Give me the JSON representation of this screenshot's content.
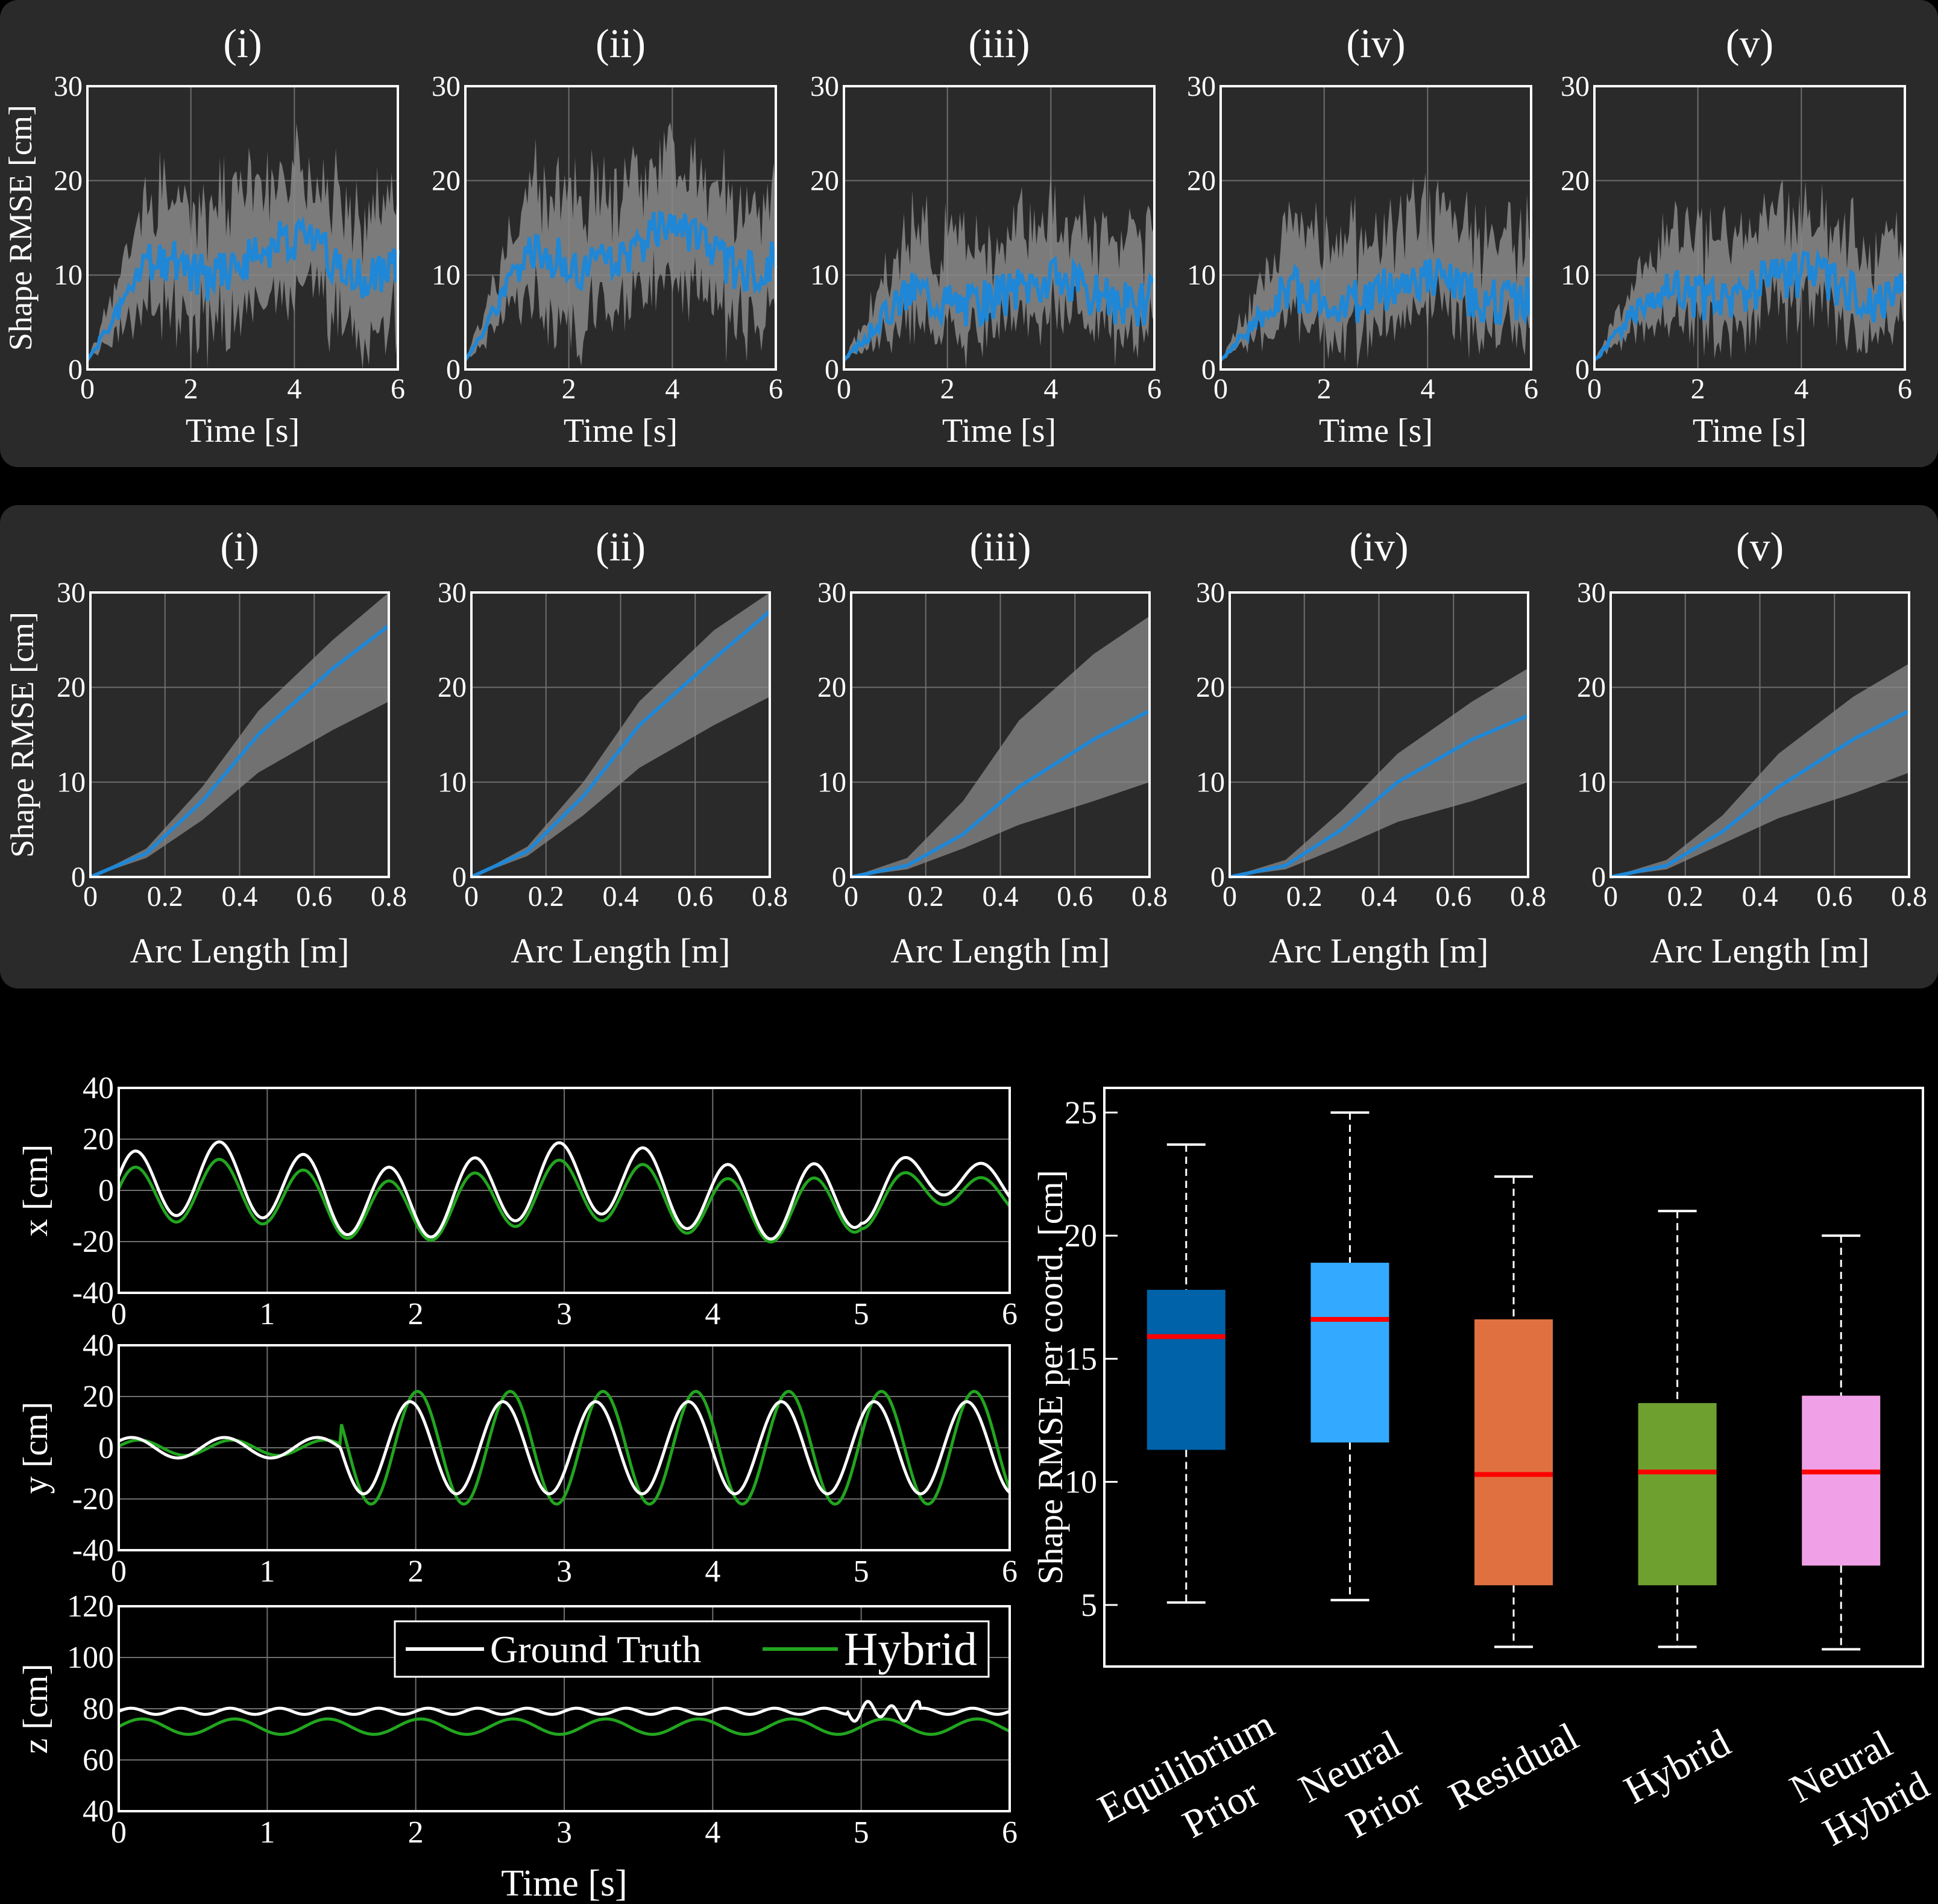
{
  "colors": {
    "background": "#000000",
    "panel": "#2a2a2a",
    "axis": "#ffffff",
    "grid": "#6e6e6e",
    "band": "#8a8a8a",
    "mean_line": "#1f87d6",
    "ground_truth": "#ffffff",
    "hybrid_line": "#22a51f",
    "median": "#ff0000"
  },
  "chart_data": [
    {
      "group": "time-rmse",
      "type": "area",
      "subplots": [
        {
          "label": "(i)",
          "mean_amp": 13.5,
          "band_lo": 7,
          "band_hi": 22,
          "seed": 1
        },
        {
          "label": "(ii)",
          "mean_amp": 14.5,
          "band_lo": 8,
          "band_hi": 23,
          "seed": 2
        },
        {
          "label": "(iii)",
          "mean_amp": 9.5,
          "band_lo": 5.5,
          "band_hi": 17,
          "seed": 3
        },
        {
          "label": "(iv)",
          "mean_amp": 9.5,
          "band_lo": 5.5,
          "band_hi": 17,
          "seed": 4
        },
        {
          "label": "(v)",
          "mean_amp": 10,
          "band_lo": 6,
          "band_hi": 17,
          "seed": 5
        }
      ],
      "xlabel": "Time [s]",
      "ylabel": "Shape RMSE [cm]",
      "xlim": [
        0,
        6
      ],
      "ylim": [
        0,
        30
      ],
      "xticks": [
        0,
        2,
        4,
        6
      ],
      "yticks": [
        0,
        10,
        20,
        30
      ],
      "grid": true
    },
    {
      "group": "arc-rmse",
      "type": "area",
      "x": [
        0,
        0.15,
        0.3,
        0.45,
        0.65,
        0.8
      ],
      "subplots": [
        {
          "label": "(i)",
          "mean": [
            0,
            2.5,
            8,
            15,
            22,
            26.5
          ],
          "lo": [
            0,
            2,
            6,
            11,
            15.5,
            18.5
          ],
          "hi": [
            0,
            3,
            9.5,
            17.5,
            25,
            30
          ]
        },
        {
          "label": "(ii)",
          "mean": [
            0,
            2.7,
            8.5,
            16,
            23,
            28
          ],
          "lo": [
            0,
            2.2,
            6.5,
            11.5,
            16,
            19
          ],
          "hi": [
            0,
            3.2,
            10,
            18.5,
            26,
            30
          ]
        },
        {
          "label": "(iii)",
          "mean": [
            0,
            1.2,
            4.5,
            9.5,
            14.5,
            17.5
          ],
          "lo": [
            0,
            0.8,
            3,
            5.5,
            8,
            10
          ],
          "hi": [
            0,
            2,
            8,
            16.5,
            23.5,
            27.5
          ]
        },
        {
          "label": "(iv)",
          "mean": [
            0,
            1.2,
            5,
            10,
            14.5,
            17
          ],
          "lo": [
            0,
            0.8,
            3.2,
            5.8,
            8,
            10
          ],
          "hi": [
            0,
            1.8,
            7,
            13,
            18.5,
            22
          ]
        },
        {
          "label": "(v)",
          "mean": [
            0,
            1.2,
            4.8,
            9.5,
            14.5,
            17.5
          ],
          "lo": [
            0,
            0.8,
            3.5,
            6.2,
            8.8,
            11
          ],
          "hi": [
            0,
            1.8,
            6.5,
            13,
            19,
            22.5
          ]
        }
      ],
      "xlabel": "Arc Length [m]",
      "ylabel": "Shape RMSE [cm]",
      "xlim": [
        0,
        0.8
      ],
      "ylim": [
        0,
        30
      ],
      "xticks": [
        0,
        0.2,
        0.4,
        0.6,
        0.8
      ],
      "yticks": [
        0,
        10,
        20,
        30
      ],
      "grid": true
    },
    {
      "group": "trajectories",
      "type": "line",
      "xlabel": "Time [s]",
      "xlim": [
        0,
        6
      ],
      "xticks": [
        0,
        1,
        2,
        3,
        4,
        5,
        6
      ],
      "legend_position": "top-right",
      "series": [
        {
          "name": "Ground Truth"
        },
        {
          "name": "Hybrid"
        }
      ],
      "axes": [
        {
          "ylabel": "x [cm]",
          "ylim": [
            -40,
            40
          ],
          "yticks": [
            -40,
            -20,
            0,
            20,
            40
          ]
        },
        {
          "ylabel": "y [cm]",
          "ylim": [
            -40,
            40
          ],
          "yticks": [
            -40,
            -20,
            0,
            20,
            40
          ]
        },
        {
          "ylabel": "z [cm]",
          "ylim": [
            40,
            120
          ],
          "yticks": [
            40,
            60,
            80,
            100,
            120
          ]
        }
      ],
      "grid": true
    },
    {
      "group": "boxplot",
      "type": "box",
      "ylabel": "Shape RMSE per coord. [cm]",
      "ylim": [
        2.5,
        26
      ],
      "yticks": [
        5,
        10,
        15,
        20,
        25
      ],
      "categories": [
        {
          "lines": [
            "Equilibrium",
            "Prior"
          ],
          "min": 5.1,
          "q1": 11.3,
          "median": 15.9,
          "q3": 17.8,
          "max": 23.7,
          "color": "#0062a8"
        },
        {
          "lines": [
            "Neural",
            "Prior"
          ],
          "min": 5.2,
          "q1": 11.6,
          "median": 16.6,
          "q3": 18.9,
          "max": 25,
          "color": "#33aaff"
        },
        {
          "lines": [
            "Residual"
          ],
          "min": 3.3,
          "q1": 5.8,
          "median": 10.3,
          "q3": 16.6,
          "max": 22.4,
          "color": "#e07040"
        },
        {
          "lines": [
            "Hybrid"
          ],
          "min": 3.3,
          "q1": 5.8,
          "median": 10.4,
          "q3": 13.2,
          "max": 21,
          "color": "#6ea030"
        },
        {
          "lines": [
            "Neural",
            "Hybrid"
          ],
          "min": 3.2,
          "q1": 6.6,
          "median": 10.4,
          "q3": 13.5,
          "max": 20,
          "color": "#f0a0e6"
        }
      ]
    }
  ]
}
